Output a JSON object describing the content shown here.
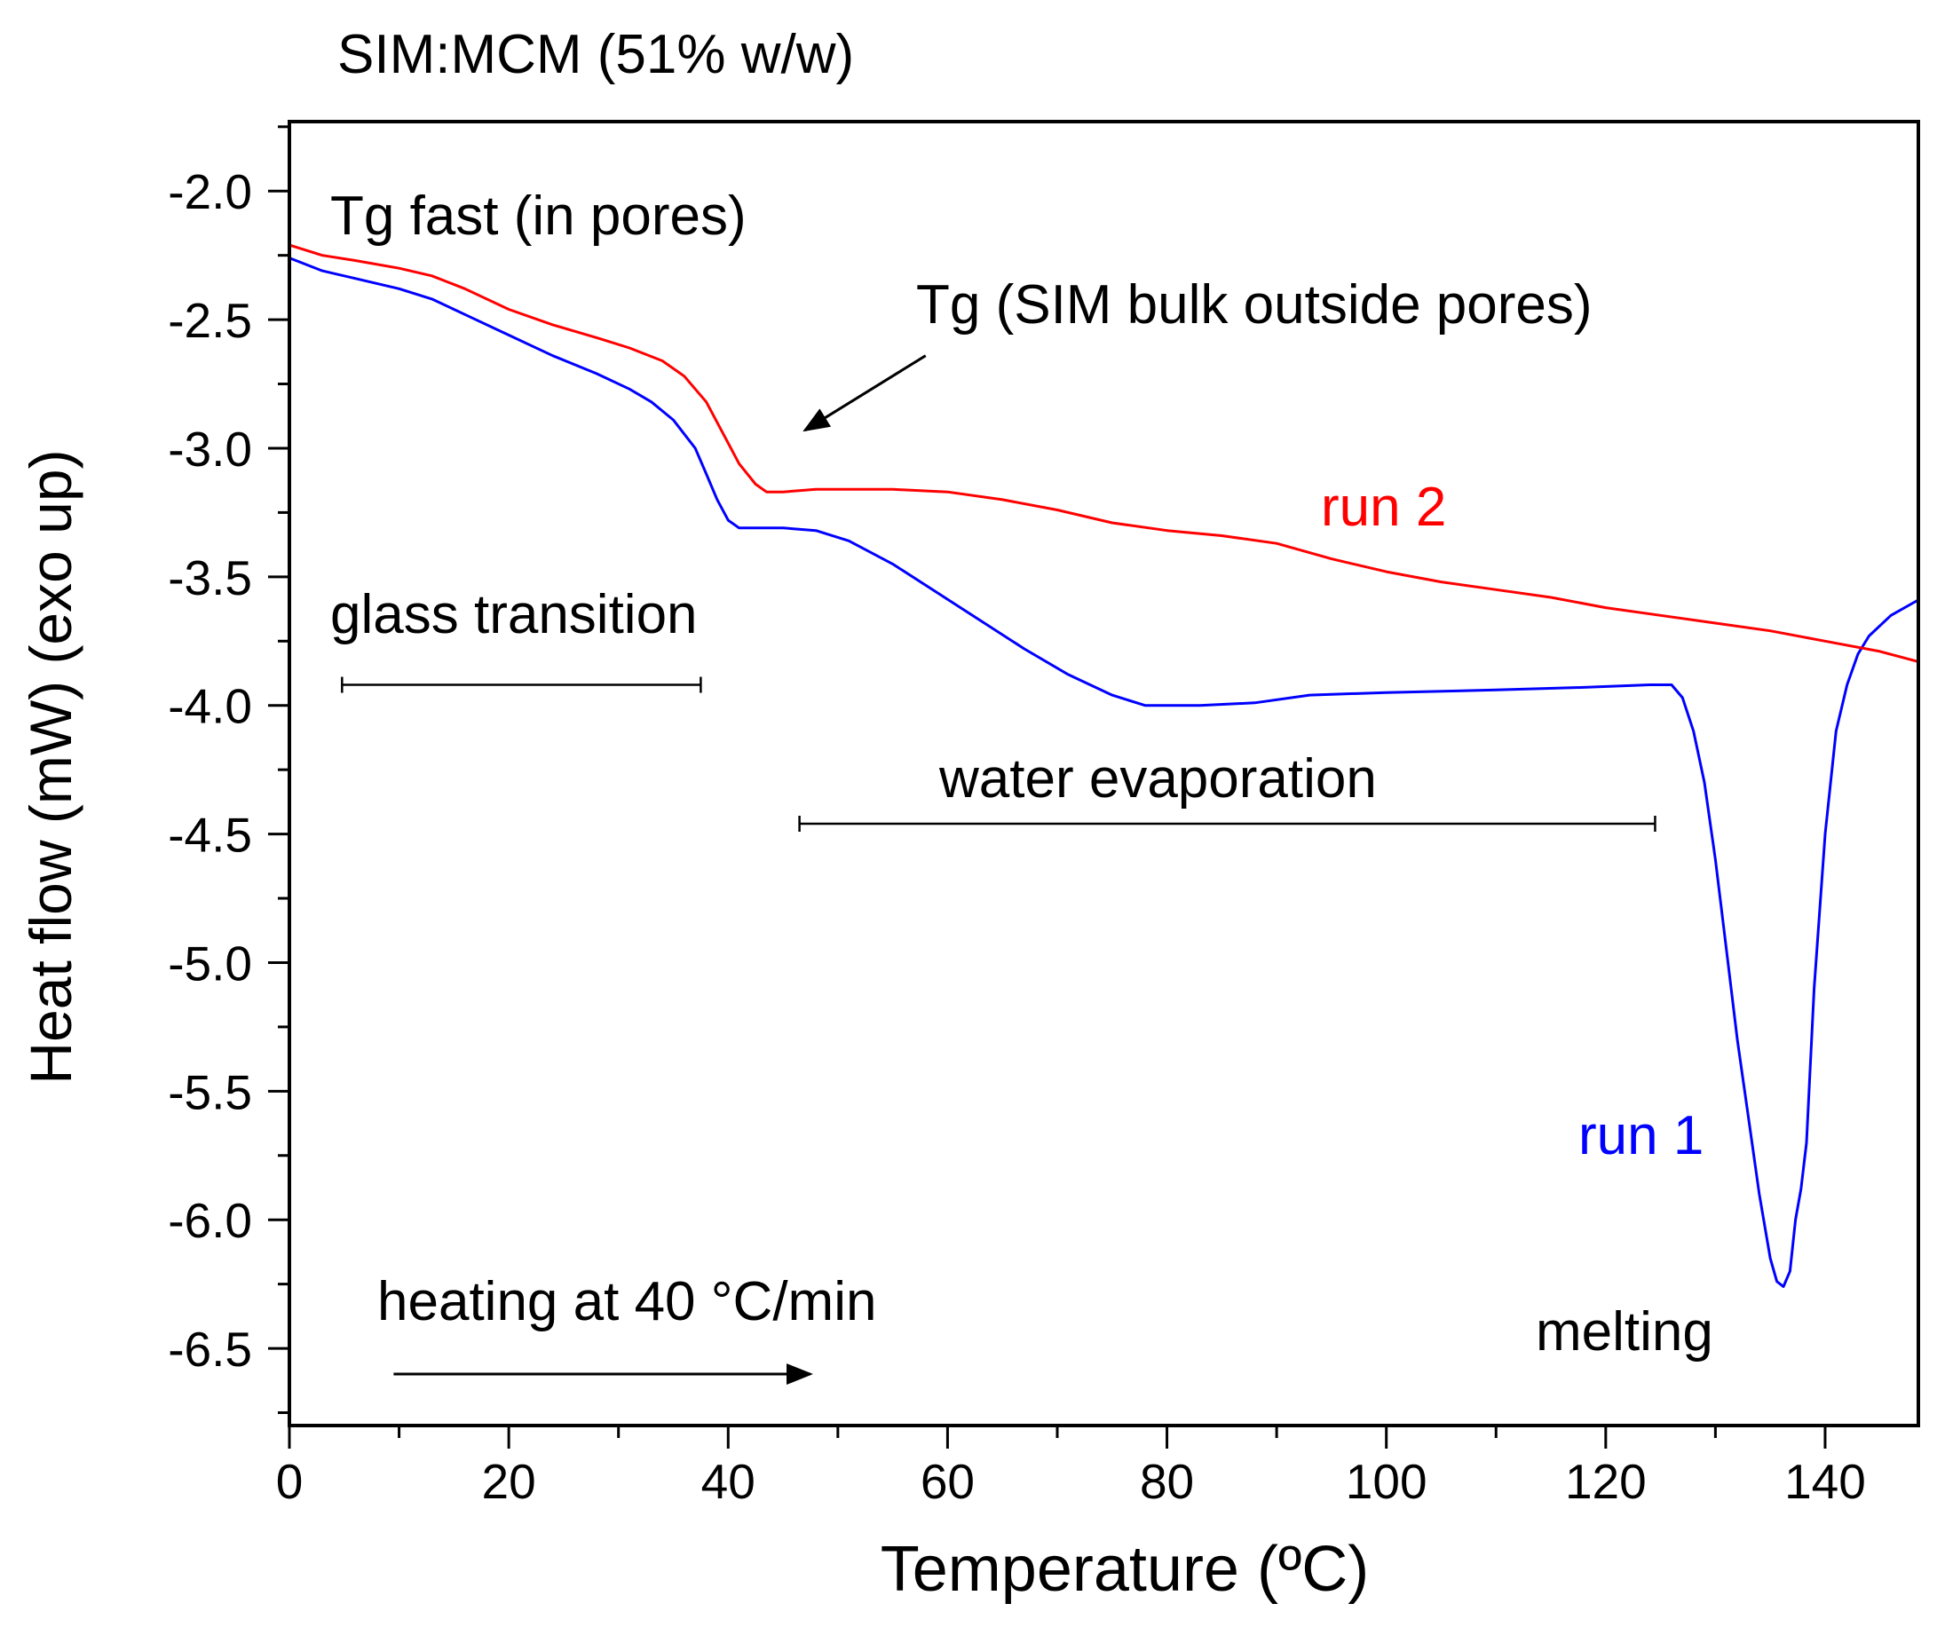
{
  "chart_data": {
    "type": "line",
    "title": "SIM:MCM (51% w/w)",
    "xlabel": "Temperature (ºC)",
    "ylabel": "Heat flow (mW) (exo up)",
    "xlim": [
      0,
      148.5
    ],
    "ylim": [
      -6.8,
      -1.73
    ],
    "x_major_ticks": [
      0,
      20,
      40,
      60,
      80,
      100,
      120,
      140
    ],
    "x_tick_labels": [
      "0",
      "20",
      "40",
      "60",
      "80",
      "100",
      "120",
      "140"
    ],
    "x_minor_step": 10,
    "y_major_ticks": [
      -2.0,
      -2.5,
      -3.0,
      -3.5,
      -4.0,
      -4.5,
      -5.0,
      -5.5,
      -6.0,
      -6.5
    ],
    "y_tick_labels": [
      "-2.0",
      "-2.5",
      "-3.0",
      "-3.5",
      "-4.0",
      "-4.5",
      "-5.0",
      "-5.5",
      "-6.0",
      "-6.5"
    ],
    "y_minor_step": 0.25,
    "grid": false,
    "legend": "none",
    "series": [
      {
        "name": "run 1",
        "label": "run 1",
        "color": "#0000ff",
        "points": [
          [
            0,
            -2.26
          ],
          [
            3,
            -2.31
          ],
          [
            6,
            -2.34
          ],
          [
            10,
            -2.38
          ],
          [
            13,
            -2.42
          ],
          [
            16,
            -2.48
          ],
          [
            20,
            -2.56
          ],
          [
            24,
            -2.64
          ],
          [
            28,
            -2.71
          ],
          [
            31,
            -2.77
          ],
          [
            33,
            -2.82
          ],
          [
            35,
            -2.89
          ],
          [
            37,
            -3.0
          ],
          [
            38,
            -3.1
          ],
          [
            39,
            -3.2
          ],
          [
            40,
            -3.28
          ],
          [
            41,
            -3.31
          ],
          [
            45,
            -3.31
          ],
          [
            48,
            -3.32
          ],
          [
            51,
            -3.36
          ],
          [
            55,
            -3.45
          ],
          [
            59,
            -3.56
          ],
          [
            63,
            -3.67
          ],
          [
            67,
            -3.78
          ],
          [
            71,
            -3.88
          ],
          [
            75,
            -3.96
          ],
          [
            78,
            -4.0
          ],
          [
            83,
            -4.0
          ],
          [
            88,
            -3.99
          ],
          [
            93,
            -3.96
          ],
          [
            100,
            -3.95
          ],
          [
            110,
            -3.94
          ],
          [
            118,
            -3.93
          ],
          [
            124,
            -3.92
          ],
          [
            126,
            -3.92
          ],
          [
            127,
            -3.97
          ],
          [
            128,
            -4.1
          ],
          [
            129,
            -4.3
          ],
          [
            130,
            -4.6
          ],
          [
            131,
            -4.95
          ],
          [
            132,
            -5.3
          ],
          [
            133,
            -5.6
          ],
          [
            134,
            -5.9
          ],
          [
            135,
            -6.15
          ],
          [
            135.6,
            -6.24
          ],
          [
            136.2,
            -6.26
          ],
          [
            136.8,
            -6.2
          ],
          [
            137.3,
            -6.0
          ],
          [
            137.8,
            -5.88
          ],
          [
            138.3,
            -5.7
          ],
          [
            139,
            -5.1
          ],
          [
            140,
            -4.5
          ],
          [
            141,
            -4.1
          ],
          [
            142,
            -3.92
          ],
          [
            143,
            -3.8
          ],
          [
            144,
            -3.73
          ],
          [
            146,
            -3.65
          ],
          [
            148.5,
            -3.59
          ]
        ]
      },
      {
        "name": "run 2",
        "label": "run 2",
        "color": "#ff0000",
        "points": [
          [
            0,
            -2.21
          ],
          [
            3,
            -2.25
          ],
          [
            6,
            -2.27
          ],
          [
            10,
            -2.3
          ],
          [
            13,
            -2.33
          ],
          [
            16,
            -2.38
          ],
          [
            20,
            -2.46
          ],
          [
            24,
            -2.52
          ],
          [
            28,
            -2.57
          ],
          [
            31,
            -2.61
          ],
          [
            34,
            -2.66
          ],
          [
            36,
            -2.72
          ],
          [
            38,
            -2.82
          ],
          [
            39.5,
            -2.94
          ],
          [
            41,
            -3.06
          ],
          [
            42.5,
            -3.14
          ],
          [
            43.5,
            -3.17
          ],
          [
            45,
            -3.17
          ],
          [
            48,
            -3.16
          ],
          [
            55,
            -3.16
          ],
          [
            60,
            -3.17
          ],
          [
            65,
            -3.2
          ],
          [
            70,
            -3.24
          ],
          [
            75,
            -3.29
          ],
          [
            80,
            -3.32
          ],
          [
            85,
            -3.34
          ],
          [
            90,
            -3.37
          ],
          [
            95,
            -3.43
          ],
          [
            100,
            -3.48
          ],
          [
            105,
            -3.52
          ],
          [
            110,
            -3.55
          ],
          [
            115,
            -3.58
          ],
          [
            120,
            -3.62
          ],
          [
            125,
            -3.65
          ],
          [
            130,
            -3.68
          ],
          [
            135,
            -3.71
          ],
          [
            140,
            -3.75
          ],
          [
            145,
            -3.79
          ],
          [
            148.5,
            -3.83
          ]
        ]
      }
    ],
    "annotations": [
      {
        "key": "tg_fast",
        "text": "Tg fast (in pores)"
      },
      {
        "key": "tg_bulk",
        "text": "Tg (SIM bulk outside pores)",
        "arrow_from": [
          58,
          -2.64
        ],
        "arrow_to": [
          47,
          -2.93
        ]
      },
      {
        "key": "glass",
        "text": "glass transition",
        "range": [
          4.8,
          37.5
        ],
        "y": -3.92
      },
      {
        "key": "water",
        "text": "water evaporation",
        "range": [
          46.5,
          124.5
        ],
        "y": -4.46
      },
      {
        "key": "heating",
        "text": "heating at 40 °C/min",
        "arrow_from": [
          9.5,
          -6.6
        ],
        "arrow_to": [
          47.5,
          -6.6
        ]
      },
      {
        "key": "melting",
        "text": "melting"
      }
    ]
  }
}
